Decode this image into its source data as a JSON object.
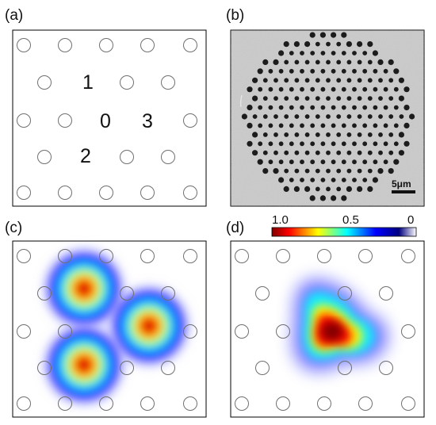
{
  "figure": {
    "panels": [
      {
        "id": "a",
        "label": "(a)",
        "content": "photonic-lattice-schematic"
      },
      {
        "id": "b",
        "label": "(b)",
        "content": "sem-micrograph"
      },
      {
        "id": "c",
        "label": "(c)",
        "content": "mode-intensity-map"
      },
      {
        "id": "d",
        "label": "(d)",
        "content": "mode-intensity-map"
      }
    ],
    "site_labels": [
      "1",
      "0",
      "3",
      "2"
    ],
    "scale_bar_label": "5μm",
    "colorbar": {
      "tick_labels": [
        "1.0",
        "0.5",
        "0"
      ],
      "colormap": [
        "#7f0000",
        "#ff0000",
        "#ffff00",
        "#00ffff",
        "#0000ff",
        "#00007f",
        "#ffffff"
      ]
    },
    "colors": {
      "frame": "#000000",
      "hole_stroke": "#707070",
      "sem_background": "#c4c4c4",
      "sem_hole": "#1c1c1c"
    }
  }
}
